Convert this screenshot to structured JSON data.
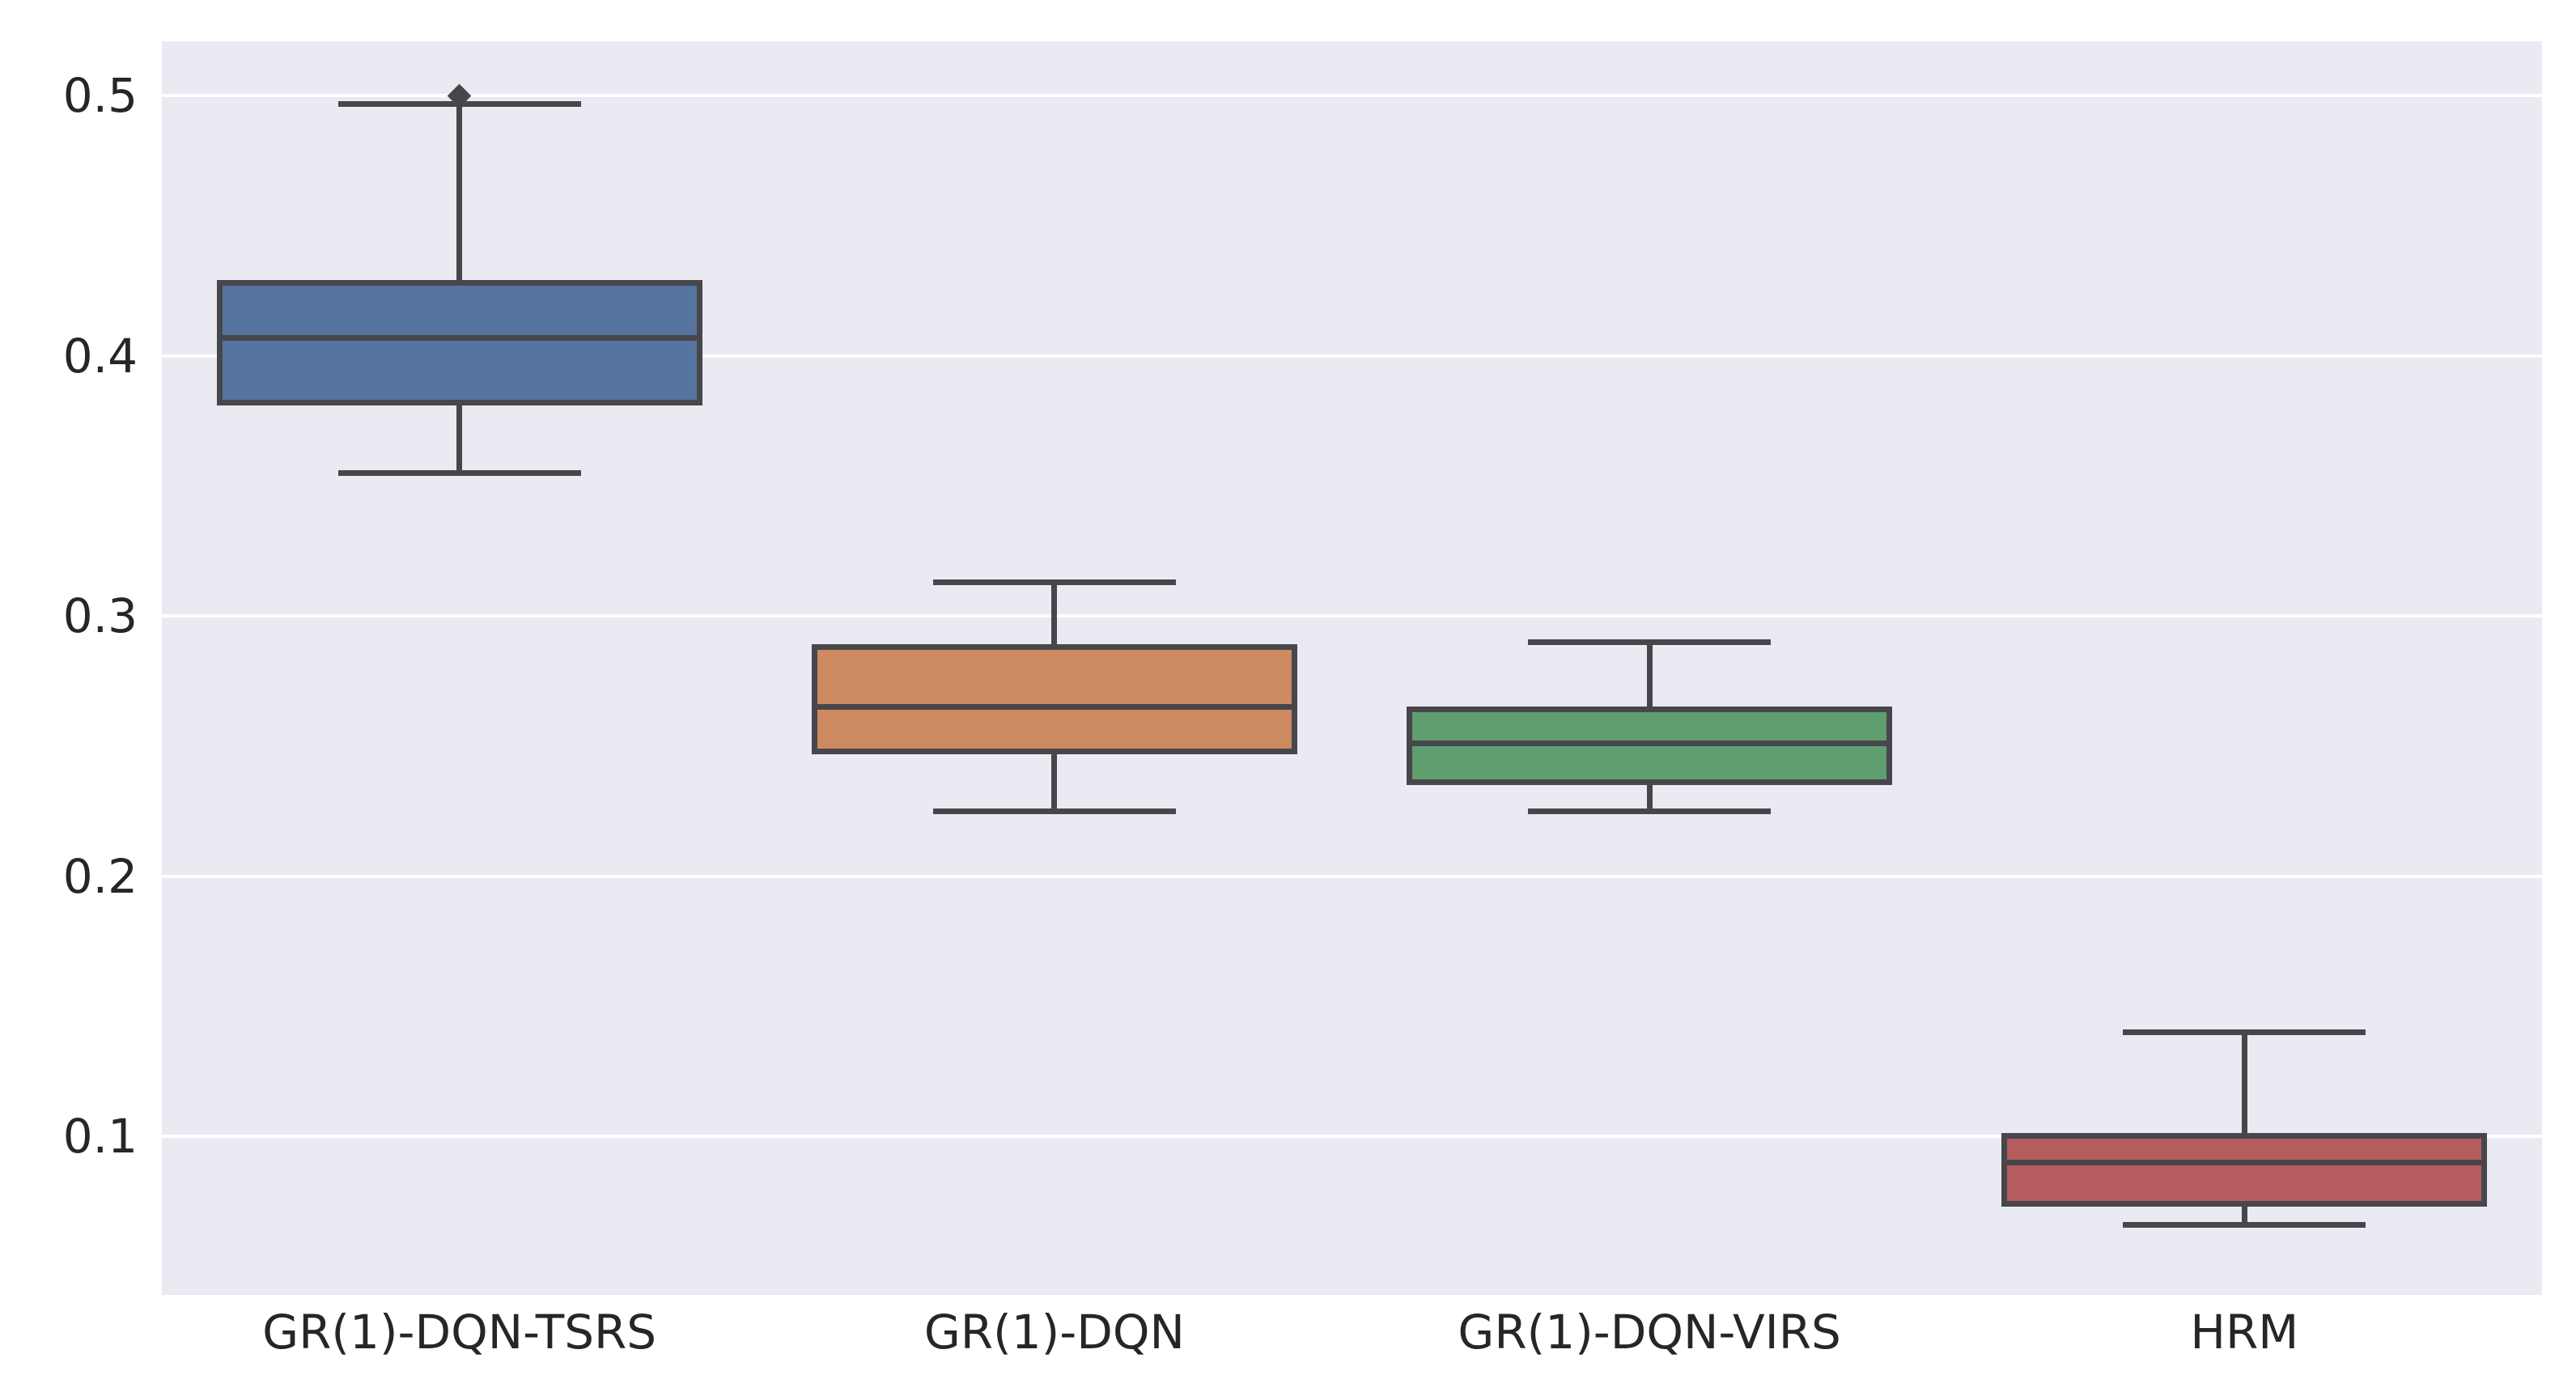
{
  "chart_data": {
    "type": "boxplot",
    "title": "",
    "xlabel": "",
    "ylabel": "",
    "grid": true,
    "legend_position": "none",
    "categories": [
      "GR(1)-DQN-TSRS",
      "GR(1)-DQN",
      "GR(1)-DQN-VIRS",
      "HRM"
    ],
    "yticks": [
      0.5,
      0.4,
      0.3,
      0.2,
      0.1
    ],
    "ytick_labels": [
      "0.5",
      "0.4",
      "0.3",
      "0.2",
      "0.1"
    ],
    "ylim": [
      0.039,
      0.521
    ],
    "series": [
      {
        "name": "GR(1)-DQN-TSRS",
        "color": "#5674A0",
        "whisker_low": 0.355,
        "q1": 0.382,
        "median": 0.407,
        "q3": 0.428,
        "whisker_high": 0.497,
        "outliers": [
          0.5
        ]
      },
      {
        "name": "GR(1)-DQN",
        "color": "#CD8A61",
        "whisker_low": 0.225,
        "q1": 0.248,
        "median": 0.265,
        "q3": 0.288,
        "whisker_high": 0.313,
        "outliers": []
      },
      {
        "name": "GR(1)-DQN-VIRS",
        "color": "#5F9E6E",
        "whisker_low": 0.225,
        "q1": 0.236,
        "median": 0.251,
        "q3": 0.264,
        "whisker_high": 0.29,
        "outliers": []
      },
      {
        "name": "HRM",
        "color": "#B45C5E",
        "whisker_low": 0.066,
        "q1": 0.074,
        "median": 0.09,
        "q3": 0.1,
        "whisker_high": 0.14,
        "outliers": []
      }
    ]
  },
  "colors": {
    "figure_bg": "#FFFFFF",
    "plot_bg": "#EAEAF2",
    "gridline": "#FFFFFF",
    "box_line": "#47474B",
    "tick_text": "#262626"
  }
}
